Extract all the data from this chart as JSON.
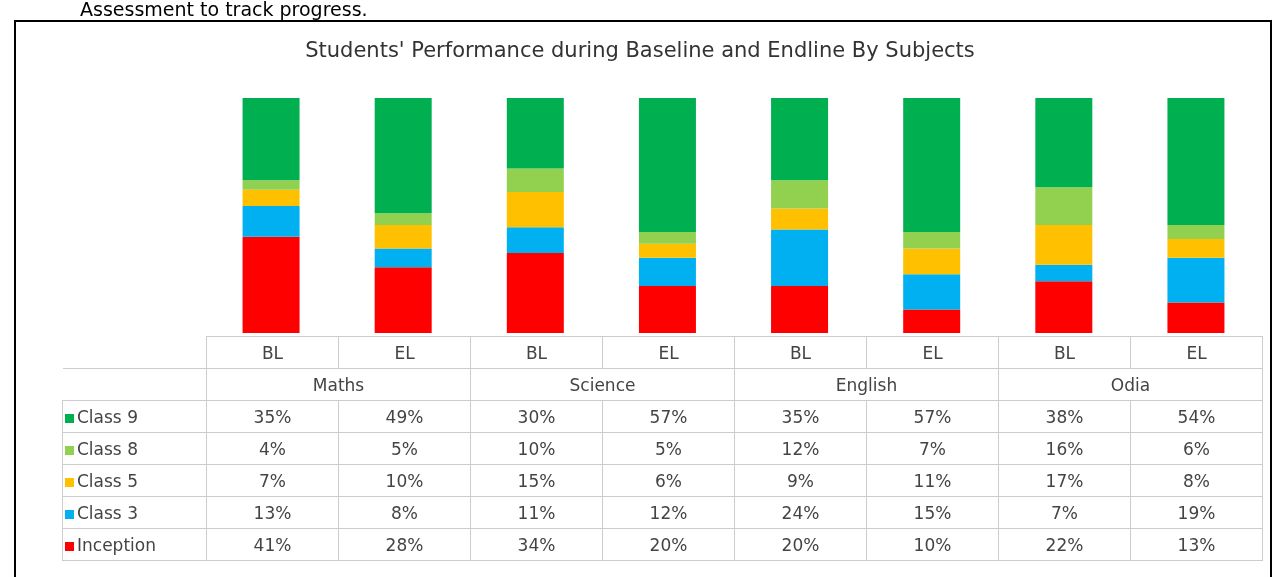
{
  "chart_data": {
    "type": "bar",
    "stacked": true,
    "title": "Students' Performance during Baseline and Endline By Subjects",
    "categories": [
      "BL",
      "EL",
      "BL",
      "EL",
      "BL",
      "EL",
      "BL",
      "EL"
    ],
    "series": [
      {
        "name": "Inception",
        "color": "#ff0000",
        "values": [
          41,
          28,
          34,
          20,
          20,
          10,
          22,
          13
        ],
        "value_labels": [
          "41%",
          "28%",
          "34%",
          "20%",
          "20%",
          "10%",
          "22%",
          "13%"
        ]
      },
      {
        "name": "Class 3",
        "color": "#00b0f0",
        "values": [
          13,
          8,
          11,
          12,
          24,
          15,
          7,
          19
        ],
        "value_labels": [
          "13%",
          "8%",
          "11%",
          "12%",
          "24%",
          "15%",
          "7%",
          "19%"
        ]
      },
      {
        "name": "Class 5",
        "color": "#ffc000",
        "values": [
          7,
          10,
          15,
          6,
          9,
          11,
          17,
          8
        ],
        "value_labels": [
          "7%",
          "10%",
          "15%",
          "6%",
          "9%",
          "11%",
          "17%",
          "8%"
        ]
      },
      {
        "name": "Class 8",
        "color": "#92d050",
        "values": [
          4,
          5,
          10,
          5,
          12,
          7,
          16,
          6
        ],
        "value_labels": [
          "4%",
          "5%",
          "10%",
          "5%",
          "12%",
          "7%",
          "16%",
          "6%"
        ]
      },
      {
        "name": "Class 9",
        "color": "#00b050",
        "values": [
          35,
          49,
          30,
          57,
          35,
          57,
          38,
          54
        ],
        "value_labels": [
          "35%",
          "49%",
          "30%",
          "57%",
          "35%",
          "57%",
          "38%",
          "54%"
        ]
      }
    ],
    "annotations": [
      "Assessment to track progress.",
      "Maths",
      "Science",
      "English",
      "Odia"
    ],
    "legend": "bottom left"
  }
}
